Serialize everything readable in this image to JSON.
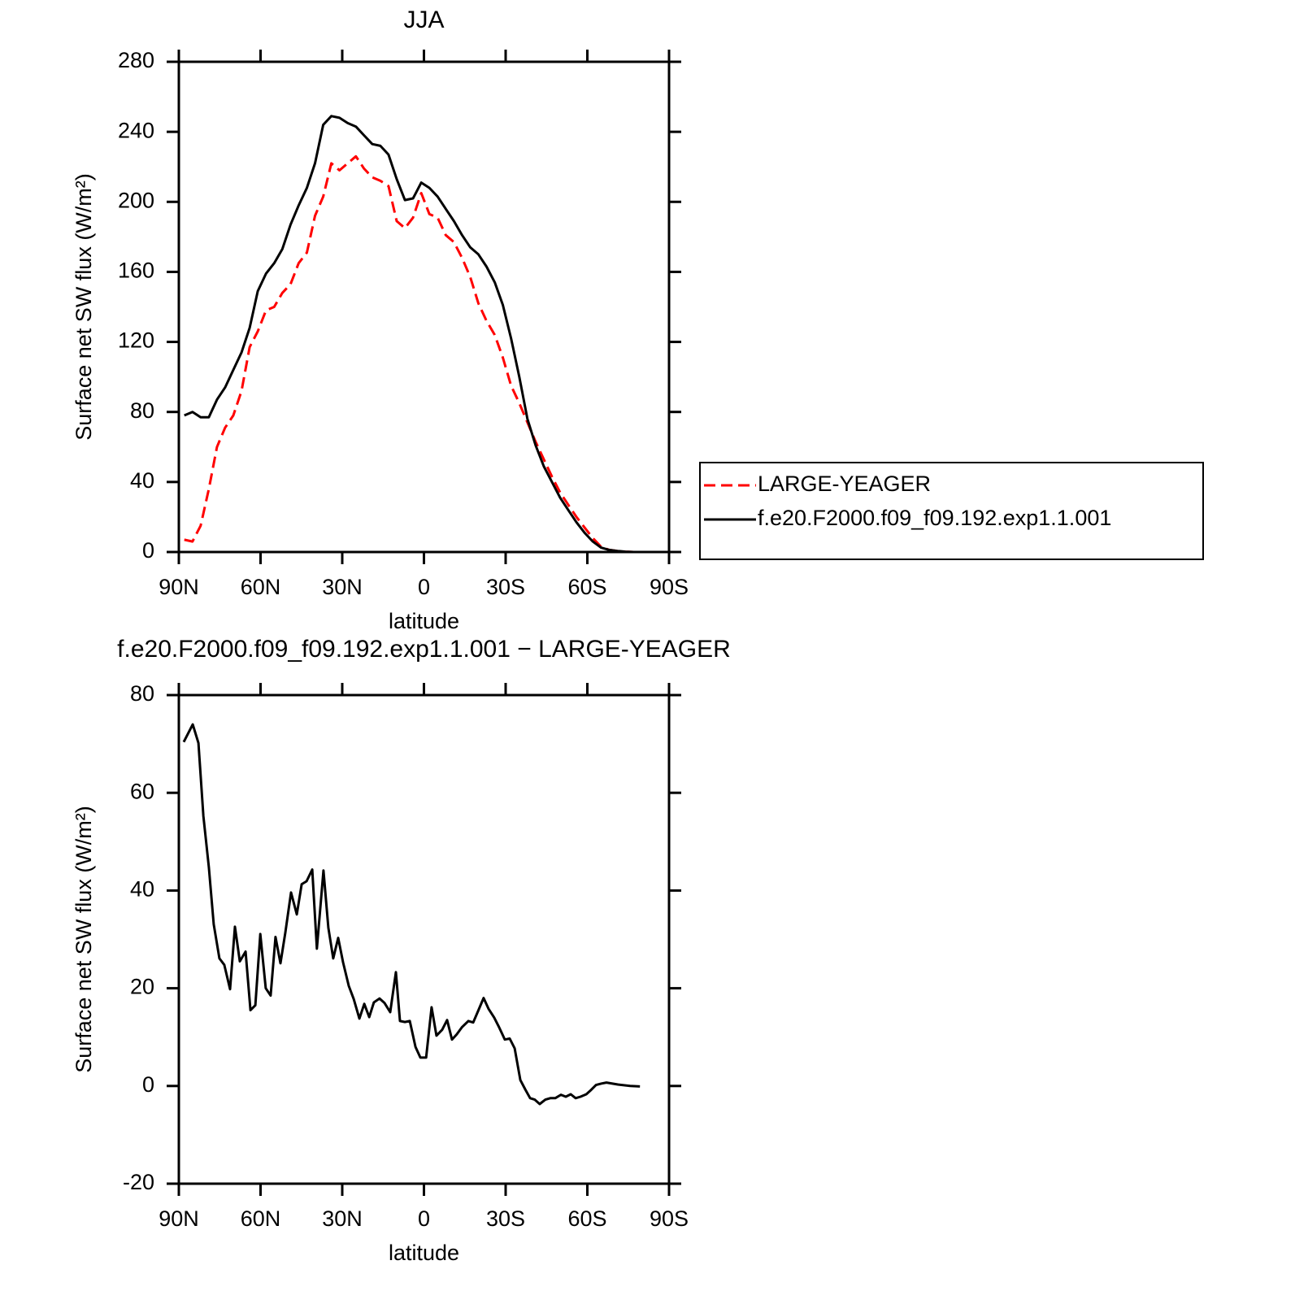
{
  "chart_data": [
    {
      "type": "line",
      "title": "JJA",
      "xlabel": "latitude",
      "ylabel": "Surface net SW flux (W/m²)",
      "x": [
        88,
        85,
        82,
        79,
        76,
        73,
        70,
        67,
        64,
        61,
        58,
        55,
        52,
        49,
        46,
        43,
        40,
        37,
        34,
        31,
        28,
        25,
        22,
        19,
        16,
        13,
        10,
        7,
        4,
        1,
        -2,
        -5,
        -8,
        -11,
        -14,
        -17,
        -20,
        -23,
        -26,
        -29,
        -32,
        -35,
        -38,
        -41,
        -44,
        -47,
        -50,
        -53,
        -56,
        -59,
        -62,
        -65,
        -68,
        -71,
        -74,
        -77,
        -80,
        -83,
        -86,
        -89
      ],
      "series": [
        {
          "name": "LARGE-YEAGER",
          "color": "#ff0000",
          "line_style": "dashed",
          "values": [
            7,
            6,
            15,
            36,
            60,
            71,
            78,
            92,
            117,
            126,
            138,
            140,
            148,
            153,
            165,
            171,
            192,
            203,
            222,
            218,
            222,
            226,
            219,
            214,
            212,
            209,
            189,
            185,
            191,
            205,
            193,
            191,
            181,
            177,
            168,
            157,
            142,
            132,
            124,
            111,
            95,
            85,
            74,
            63,
            53,
            43,
            34,
            27,
            20,
            14,
            8,
            3,
            1.2,
            0.6,
            0.2,
            0,
            0,
            0,
            0,
            0
          ]
        },
        {
          "name": "f.e20.F2000.f09_f09.192.exp1.1.001",
          "color": "#000000",
          "line_style": "solid",
          "values": [
            78,
            80,
            77,
            77,
            87,
            94,
            104,
            114,
            128,
            149,
            159,
            165,
            173,
            187,
            198,
            208,
            222,
            244,
            249,
            248,
            245,
            243,
            238,
            233,
            232,
            227,
            213,
            201,
            202,
            211,
            208,
            203,
            196,
            189,
            181,
            174,
            170,
            163,
            154,
            141,
            122,
            100,
            76,
            61,
            49,
            40,
            31,
            24,
            17,
            11,
            6,
            2.5,
            1.2,
            0.6,
            0.2,
            0,
            0,
            0,
            0,
            0
          ]
        }
      ],
      "xlim": [
        90,
        -90
      ],
      "xticks": [
        {
          "value": 90,
          "label": "90N"
        },
        {
          "value": 60,
          "label": "60N"
        },
        {
          "value": 30,
          "label": "30N"
        },
        0,
        {
          "value": -30,
          "label": "30S"
        },
        {
          "value": -60,
          "label": "60S"
        },
        {
          "value": -90,
          "label": "90S"
        }
      ],
      "ylim": [
        0,
        280
      ],
      "yticks": [
        0,
        40,
        80,
        120,
        160,
        200,
        240,
        280
      ],
      "legend": "right"
    },
    {
      "type": "line",
      "title": "f.e20.F2000.f09_f09.192.exp1.1.001 − LARGE-YEAGER",
      "xlabel": "latitude",
      "ylabel": "Surface net SW flux (W/m²)",
      "x": [
        88.2,
        84.9,
        82.8,
        81,
        79,
        77.2,
        75.1,
        73.3,
        71.2,
        69.4,
        67.6,
        65.5,
        63.7,
        61.9,
        60.1,
        58.1,
        56.3,
        54.5,
        52.7,
        50.9,
        48.8,
        46.7,
        44.9,
        43.1,
        41,
        39.3,
        36.9,
        35.1,
        33.3,
        31.5,
        29.7,
        27.6,
        25.8,
        23.7,
        21.9,
        20.1,
        18.4,
        16.3,
        14.5,
        12.4,
        10.3,
        8.8,
        7,
        5.2,
        3.1,
        1.3,
        -0.8,
        -2.8,
        -4.6,
        -6.7,
        -8.5,
        -10.3,
        -12.1,
        -13.9,
        -16.3,
        -18.1,
        -20.1,
        -21.9,
        -23.7,
        -25.8,
        -27.6,
        -29.7,
        -31.5,
        -33.3,
        -35.4,
        -37.2,
        -39,
        -40.7,
        -42.5,
        -44.6,
        -46.4,
        -48.2,
        -50.3,
        -52.1,
        -53.9,
        -55.7,
        -57.5,
        -59.6,
        -61.4,
        -63.2,
        -65.2,
        -67,
        -71.2,
        -75.7,
        -79.3
      ],
      "series": [
        {
          "name": "f.e20.F2000.f09_f09.192.exp1.1.001 − LARGE-YEAGER",
          "color": "#000000",
          "line_style": "solid",
          "values": [
            70.4,
            74,
            70.2,
            55.2,
            44.8,
            33.1,
            26.1,
            24.8,
            19.8,
            32.6,
            25.5,
            27.5,
            15.5,
            16.5,
            31.1,
            20,
            18.5,
            30.5,
            25.1,
            31.4,
            39.6,
            35.1,
            41.3,
            41.9,
            44.3,
            28.1,
            44.1,
            32.4,
            26.1,
            30.3,
            25.3,
            20.5,
            17.8,
            13.8,
            16.8,
            14.1,
            17.1,
            17.9,
            17,
            15.1,
            23.3,
            13.3,
            13.1,
            13.3,
            8,
            5.8,
            5.8,
            16.1,
            10.3,
            11.5,
            13.5,
            9.5,
            10.6,
            12,
            13.3,
            13,
            15.6,
            18,
            15.8,
            14,
            12,
            9.5,
            9.7,
            7.7,
            1.2,
            -0.7,
            -2.5,
            -2.8,
            -3.7,
            -2.8,
            -2.5,
            -2.5,
            -1.8,
            -2.2,
            -1.7,
            -2.5,
            -2.2,
            -1.7,
            -0.8,
            0.2,
            0.5,
            0.7,
            0.3,
            0,
            -0.1
          ]
        }
      ],
      "xlim": [
        90,
        -90
      ],
      "xticks": [
        {
          "value": 90,
          "label": "90N"
        },
        {
          "value": 60,
          "label": "60N"
        },
        {
          "value": 30,
          "label": "30N"
        },
        0,
        {
          "value": -30,
          "label": "30S"
        },
        {
          "value": -60,
          "label": "60S"
        },
        {
          "value": -90,
          "label": "90S"
        }
      ],
      "ylim": [
        -20,
        80
      ],
      "yticks": [
        -20,
        0,
        20,
        40,
        60,
        80
      ]
    }
  ]
}
